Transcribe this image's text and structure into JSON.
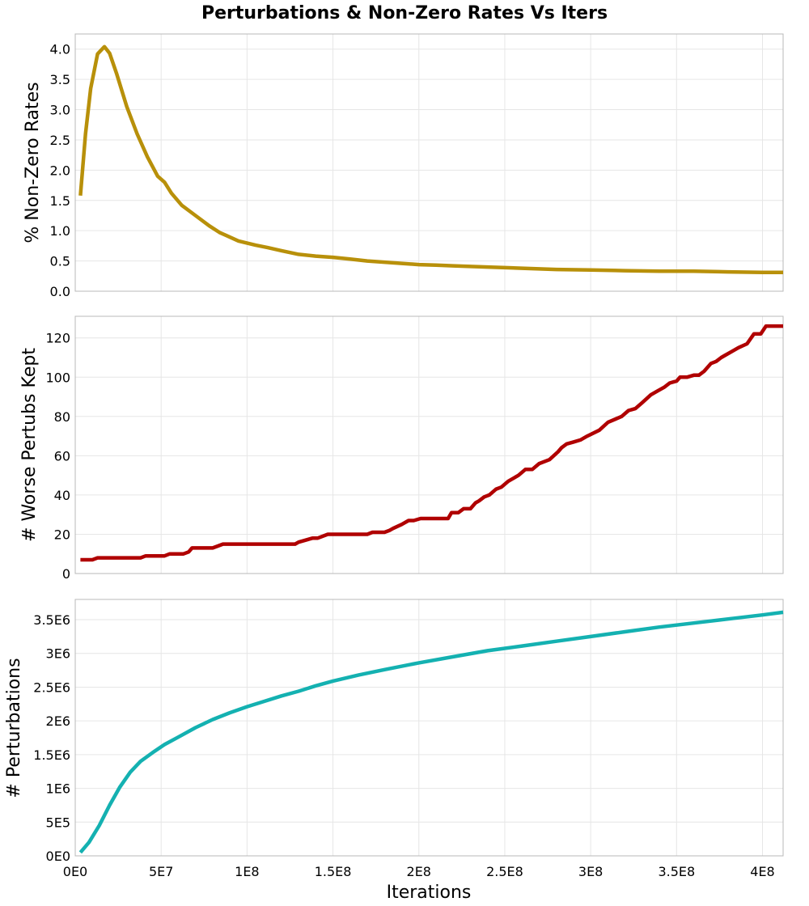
{
  "figure_title": "Perturbations & Non-Zero Rates Vs Iters",
  "x_axis": {
    "label": "Iterations",
    "range": [
      0,
      412000000
    ],
    "ticks": [
      0,
      50000000,
      100000000,
      150000000,
      200000000,
      250000000,
      300000000,
      350000000,
      400000000
    ],
    "tick_labels": [
      "0E0",
      "5E7",
      "1E8",
      "1.5E8",
      "2E8",
      "2.5E8",
      "3E8",
      "3.5E8",
      "4E8"
    ]
  },
  "chart_data": [
    {
      "type": "line",
      "ylabel": "% Non-Zero Rates",
      "ylim": [
        0,
        4.25
      ],
      "yticks": [
        0,
        0.5,
        1.0,
        1.5,
        2.0,
        2.5,
        3.0,
        3.5,
        4.0
      ],
      "ytick_labels": [
        "0.0",
        "0.5",
        "1.0",
        "1.5",
        "2.0",
        "2.5",
        "3.0",
        "3.5",
        "4.0"
      ],
      "grid": true,
      "series": [
        {
          "color": "#b8900a",
          "x": [
            3000000,
            6000000,
            9000000,
            13000000,
            17000000,
            20000000,
            24000000,
            30000000,
            36000000,
            42000000,
            48000000,
            52000000,
            56000000,
            62000000,
            70000000,
            78000000,
            84000000,
            88000000,
            95000000,
            105000000,
            112000000,
            120000000,
            130000000,
            140000000,
            150000000,
            160000000,
            170000000,
            180000000,
            190000000,
            200000000,
            210000000,
            220000000,
            240000000,
            260000000,
            280000000,
            300000000,
            320000000,
            340000000,
            360000000,
            380000000,
            400000000,
            412000000
          ],
          "y": [
            1.58,
            2.6,
            3.35,
            3.92,
            4.04,
            3.93,
            3.6,
            3.05,
            2.6,
            2.22,
            1.9,
            1.8,
            1.62,
            1.42,
            1.25,
            1.08,
            0.97,
            0.92,
            0.83,
            0.76,
            0.72,
            0.67,
            0.61,
            0.58,
            0.56,
            0.53,
            0.5,
            0.48,
            0.46,
            0.44,
            0.43,
            0.42,
            0.4,
            0.38,
            0.36,
            0.35,
            0.34,
            0.33,
            0.33,
            0.32,
            0.31,
            0.31
          ]
        }
      ]
    },
    {
      "type": "line",
      "ylabel": "# Worse Pertubs Kept",
      "ylim": [
        0,
        131
      ],
      "yticks": [
        0,
        20,
        40,
        60,
        80,
        100,
        120
      ],
      "ytick_labels": [
        "0",
        "20",
        "40",
        "60",
        "80",
        "100",
        "120"
      ],
      "grid": true,
      "series": [
        {
          "color": "#b00000",
          "x": [
            3000000,
            10000000,
            13000000,
            38000000,
            41000000,
            52000000,
            55000000,
            63000000,
            66000000,
            68000000,
            71000000,
            80000000,
            83000000,
            86000000,
            89000000,
            128000000,
            130000000,
            138000000,
            141000000,
            147000000,
            150000000,
            170000000,
            173000000,
            180000000,
            183000000,
            185000000,
            190000000,
            194000000,
            197000000,
            201000000,
            205000000,
            217000000,
            219000000,
            223000000,
            226000000,
            230000000,
            233000000,
            235000000,
            238000000,
            241000000,
            245000000,
            248000000,
            252000000,
            258000000,
            262000000,
            266000000,
            270000000,
            276000000,
            281000000,
            283000000,
            286000000,
            290000000,
            294000000,
            298000000,
            305000000,
            310000000,
            318000000,
            322000000,
            326000000,
            330000000,
            335000000,
            339000000,
            343000000,
            346000000,
            350000000,
            352000000,
            356000000,
            360000000,
            363000000,
            366000000,
            370000000,
            373000000,
            376000000,
            378000000,
            382000000,
            386000000,
            391000000,
            395000000,
            397000000,
            399000000,
            402000000,
            405000000,
            407000000,
            410000000,
            412000000
          ],
          "y": [
            7,
            7,
            8,
            8,
            9,
            9,
            10,
            10,
            11,
            13,
            13,
            13,
            14,
            15,
            15,
            15,
            16,
            18,
            18,
            20,
            20,
            20,
            21,
            21,
            22,
            23,
            25,
            27,
            27,
            28,
            28,
            28,
            31,
            31,
            33,
            33,
            36,
            37,
            39,
            40,
            43,
            44,
            47,
            50,
            53,
            53,
            56,
            58,
            62,
            64,
            66,
            67,
            68,
            70,
            73,
            77,
            80,
            83,
            84,
            87,
            91,
            93,
            95,
            97,
            98,
            100,
            100,
            101,
            101,
            103,
            107,
            108,
            110,
            111,
            113,
            115,
            117,
            122,
            122,
            122,
            126,
            126,
            126,
            126,
            126
          ]
        }
      ]
    },
    {
      "type": "line",
      "ylabel": "# Perturbations",
      "ylim": [
        0,
        3800000
      ],
      "yticks": [
        0,
        500000,
        1000000,
        1500000,
        2000000,
        2500000,
        3000000,
        3500000
      ],
      "ytick_labels": [
        "0E0",
        "5E5",
        "1E6",
        "1.5E6",
        "2E6",
        "2.5E6",
        "3E6",
        "3.5E6"
      ],
      "grid": true,
      "series": [
        {
          "color": "#14b1b1",
          "x": [
            3000000,
            8000000,
            14000000,
            20000000,
            26000000,
            32000000,
            38000000,
            45000000,
            52000000,
            60000000,
            70000000,
            80000000,
            90000000,
            100000000,
            110000000,
            120000000,
            130000000,
            140000000,
            150000000,
            165000000,
            180000000,
            200000000,
            220000000,
            240000000,
            260000000,
            280000000,
            300000000,
            320000000,
            340000000,
            360000000,
            380000000,
            400000000,
            412000000
          ],
          "y": [
            50000,
            200000,
            450000,
            750000,
            1020000,
            1240000,
            1400000,
            1530000,
            1650000,
            1760000,
            1900000,
            2020000,
            2120000,
            2210000,
            2290000,
            2370000,
            2440000,
            2520000,
            2590000,
            2680000,
            2760000,
            2860000,
            2950000,
            3040000,
            3110000,
            3180000,
            3250000,
            3320000,
            3390000,
            3450000,
            3510000,
            3570000,
            3610000
          ]
        }
      ]
    }
  ]
}
